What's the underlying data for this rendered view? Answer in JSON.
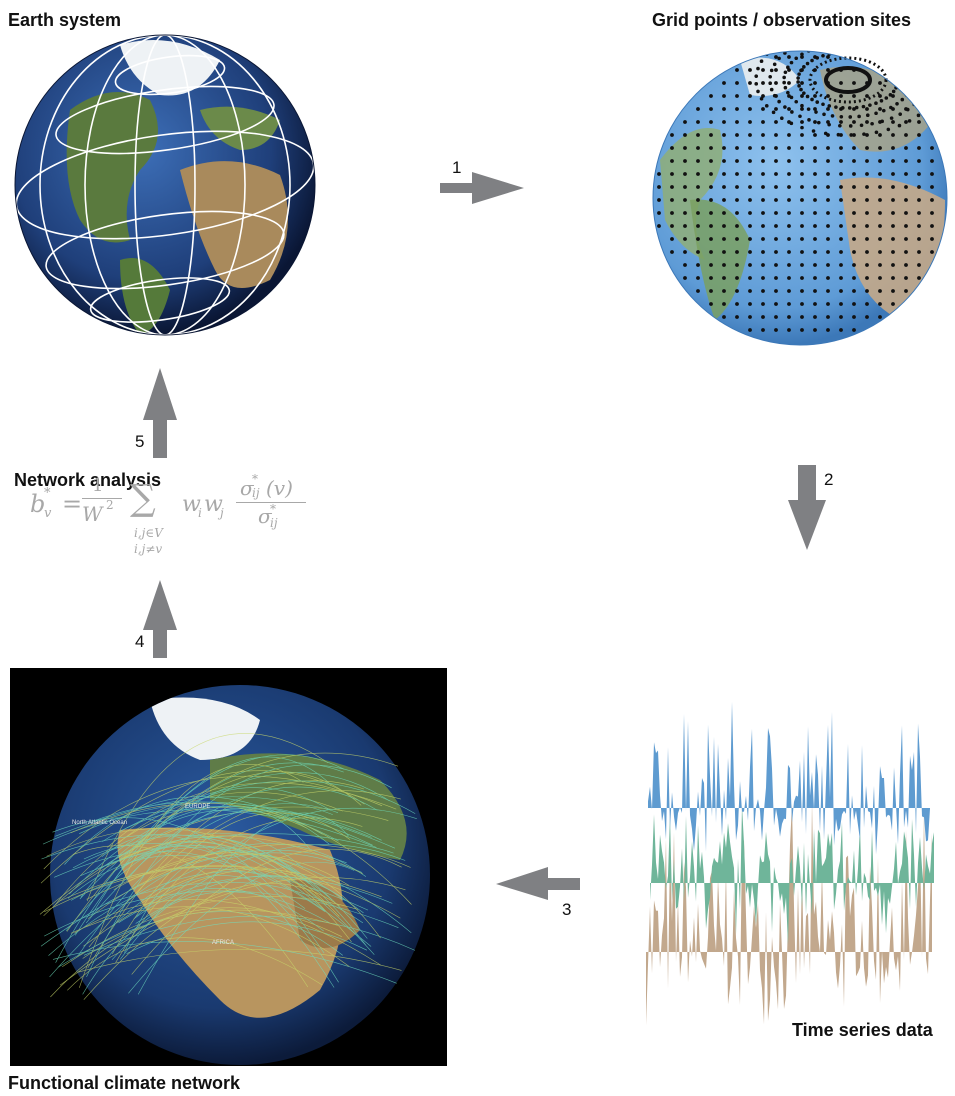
{
  "labels": {
    "earth_system": "Earth system",
    "grid_points": "Grid points / observation sites",
    "network_analysis": "Network analysis",
    "time_series": "Time series data",
    "functional_network": "Functional climate network"
  },
  "steps": [
    "1",
    "2",
    "3",
    "4",
    "5"
  ],
  "formula": {
    "lhs": "b",
    "lhs_sup": "*",
    "lhs_sub": "v",
    "eq": "=",
    "frac_num": "1",
    "frac_den": "W",
    "frac_den_sup": "2",
    "sum": "∑",
    "sum_sub1": "i,j∈V",
    "sum_sub2": "i,j≠v",
    "weights": "w",
    "w_sub_i": "i",
    "w_sub_j": "j",
    "sigma_num": "σ",
    "sigma_num_sup": "*",
    "sigma_num_sub": "ij",
    "sigma_num_arg": "(v)",
    "sigma_den": "σ",
    "sigma_den_sup": "*",
    "sigma_den_sub": "ij"
  },
  "map_labels": {
    "ocean": "North Atlantic Ocean",
    "europe": "EUROPE",
    "africa": "AFRICA"
  },
  "colors": {
    "arrow": "#7f8083",
    "ocean": "#2f5fa8",
    "series_blue": "#5e9bd0",
    "series_green": "#6fb59a",
    "series_tan": "#c2a88d"
  }
}
